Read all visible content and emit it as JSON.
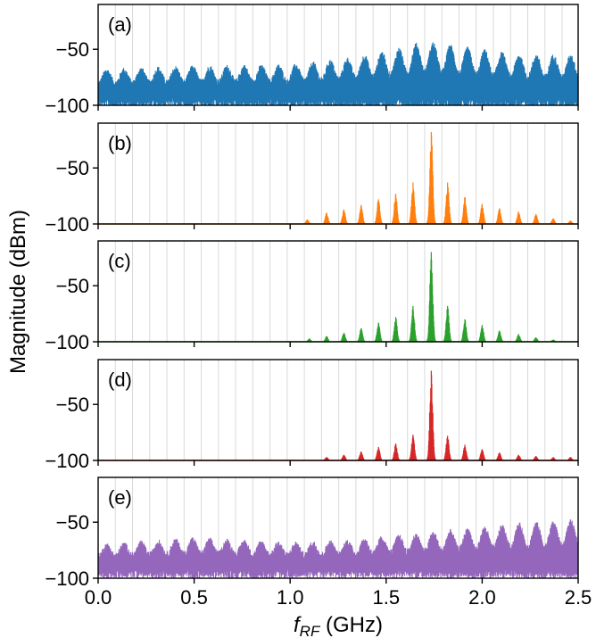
{
  "chart_data": {
    "type": "line",
    "ylabel": "Magnitude (dBm)",
    "xlabel_main": "f",
    "xlabel_sub": "RF",
    "xlabel_unit": " (GHz)",
    "xlim": [
      0.0,
      2.5
    ],
    "ylim": [
      -100,
      -10
    ],
    "x_ticks": [
      "0.0",
      "0.5",
      "1.0",
      "1.5",
      "2.0",
      "2.5"
    ],
    "x_tick_values": [
      0.0,
      0.5,
      1.0,
      1.5,
      2.0,
      2.5
    ],
    "y_ticks": [
      "−50",
      "−100"
    ],
    "y_tick_values": [
      -50,
      -100
    ],
    "grid": "vertical lines at every 0.0895 GHz",
    "grid_spacing": 0.0895,
    "panels": [
      {
        "label": "(a)",
        "color": "#1f77b4",
        "kind": "broadband",
        "peak_envelope": [
          [
            0.0,
            -70
          ],
          [
            0.5,
            -67
          ],
          [
            1.0,
            -66
          ],
          [
            1.3,
            -60
          ],
          [
            1.55,
            -52
          ],
          [
            1.7,
            -45
          ],
          [
            1.9,
            -50
          ],
          [
            2.2,
            -57
          ],
          [
            2.5,
            -57
          ]
        ],
        "floor": -90
      },
      {
        "label": "(b)",
        "color": "#ff7f0e",
        "kind": "comb",
        "peaks": [
          [
            1.09,
            -96
          ],
          [
            1.19,
            -90
          ],
          [
            1.28,
            -87
          ],
          [
            1.37,
            -83
          ],
          [
            1.46,
            -78
          ],
          [
            1.55,
            -73
          ],
          [
            1.64,
            -63
          ],
          [
            1.735,
            -18
          ],
          [
            1.82,
            -63
          ],
          [
            1.91,
            -76
          ],
          [
            2.0,
            -82
          ],
          [
            2.09,
            -86
          ],
          [
            2.19,
            -89
          ],
          [
            2.28,
            -91
          ],
          [
            2.37,
            -95
          ],
          [
            2.46,
            -97
          ]
        ],
        "floor": -100
      },
      {
        "label": "(c)",
        "color": "#2ca02c",
        "kind": "comb",
        "peaks": [
          [
            1.1,
            -97
          ],
          [
            1.19,
            -95
          ],
          [
            1.28,
            -92
          ],
          [
            1.37,
            -88
          ],
          [
            1.46,
            -83
          ],
          [
            1.55,
            -78
          ],
          [
            1.64,
            -68
          ],
          [
            1.735,
            -20
          ],
          [
            1.82,
            -68
          ],
          [
            1.91,
            -80
          ],
          [
            2.0,
            -85
          ],
          [
            2.09,
            -90
          ],
          [
            2.19,
            -93
          ],
          [
            2.28,
            -96
          ],
          [
            2.37,
            -98
          ]
        ],
        "floor": -100
      },
      {
        "label": "(d)",
        "color": "#d62728",
        "kind": "comb",
        "peaks": [
          [
            1.19,
            -97
          ],
          [
            1.28,
            -95
          ],
          [
            1.37,
            -92
          ],
          [
            1.46,
            -88
          ],
          [
            1.55,
            -85
          ],
          [
            1.64,
            -77
          ],
          [
            1.735,
            -20
          ],
          [
            1.82,
            -78
          ],
          [
            1.91,
            -86
          ],
          [
            2.0,
            -90
          ],
          [
            2.09,
            -93
          ],
          [
            2.19,
            -95
          ],
          [
            2.28,
            -96
          ],
          [
            2.37,
            -97
          ],
          [
            2.46,
            -97
          ]
        ],
        "floor": -100
      },
      {
        "label": "(e)",
        "color": "#9467bd",
        "kind": "broadband",
        "peak_envelope": [
          [
            0.0,
            -72
          ],
          [
            0.5,
            -66
          ],
          [
            1.0,
            -70
          ],
          [
            1.3,
            -68
          ],
          [
            1.6,
            -63
          ],
          [
            1.9,
            -58
          ],
          [
            2.2,
            -53
          ],
          [
            2.5,
            -50
          ]
        ],
        "floor": -88
      }
    ]
  }
}
